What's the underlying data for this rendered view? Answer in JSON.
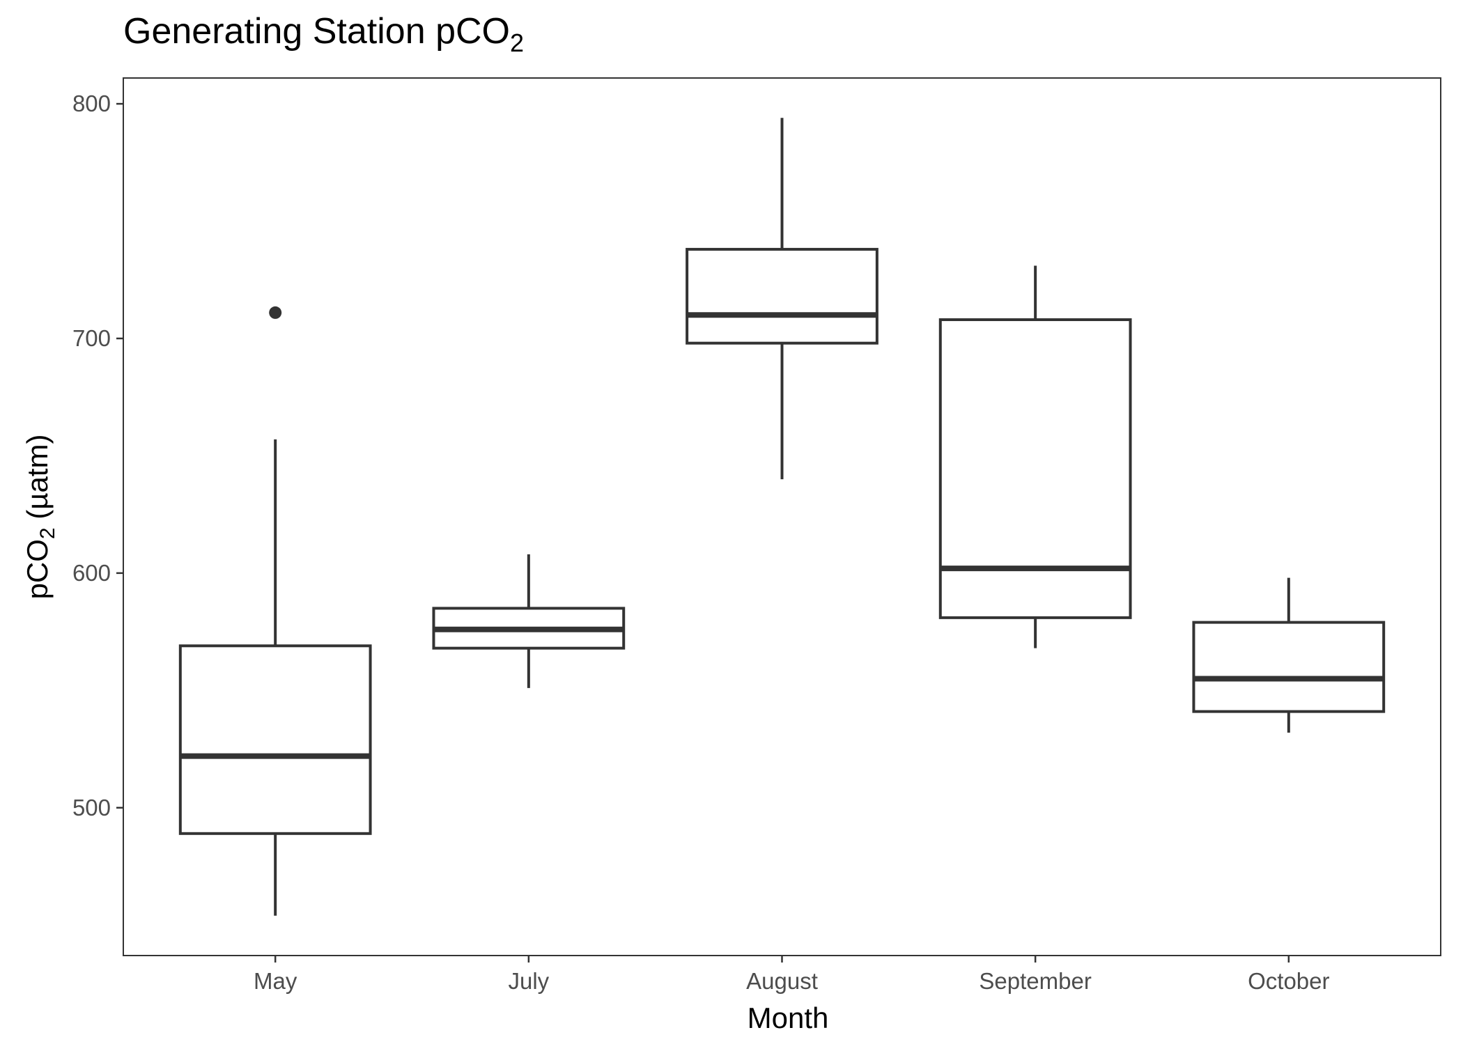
{
  "chart_data": {
    "type": "box",
    "title": {
      "main": "Generating Station pCO",
      "sub": "2"
    },
    "xlabel": "Month",
    "ylabel": {
      "prefix": "pCO",
      "sub": "2",
      "suffix": " (µatm)"
    },
    "ylim": [
      437,
      811
    ],
    "yticks": [
      500,
      600,
      700,
      800
    ],
    "grid": false,
    "categories": [
      "May",
      "July",
      "August",
      "September",
      "October"
    ],
    "boxes": [
      {
        "category": "May",
        "whisker_low": 454,
        "q1": 489,
        "median": 522,
        "q3": 569,
        "whisker_high": 657,
        "outliers": [
          711
        ]
      },
      {
        "category": "July",
        "whisker_low": 551,
        "q1": 568,
        "median": 576,
        "q3": 585,
        "whisker_high": 608,
        "outliers": []
      },
      {
        "category": "August",
        "whisker_low": 640,
        "q1": 698,
        "median": 710,
        "q3": 738,
        "whisker_high": 794,
        "outliers": []
      },
      {
        "category": "September",
        "whisker_low": 568,
        "q1": 581,
        "median": 602,
        "q3": 708,
        "whisker_high": 731,
        "outliers": []
      },
      {
        "category": "October",
        "whisker_low": 532,
        "q1": 541,
        "median": 555,
        "q3": 579,
        "whisker_high": 598,
        "outliers": []
      }
    ]
  }
}
